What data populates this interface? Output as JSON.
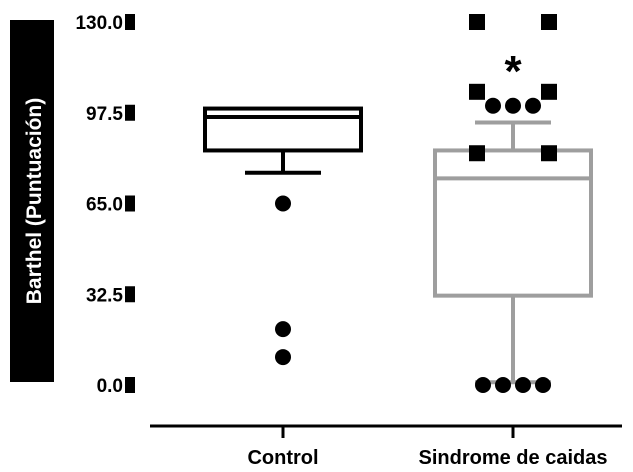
{
  "chart_data": {
    "type": "box",
    "ylabel": "Barthel (Puntuación)",
    "xlabel": "",
    "ylim": [
      0,
      130
    ],
    "yticks": [
      0.0,
      32.5,
      65.0,
      97.5,
      130.0
    ],
    "ytick_labels": [
      "0.0",
      "32.5",
      "65.0",
      "97.5",
      "130.0"
    ],
    "categories": [
      "Control",
      "Sindrome de caidas"
    ],
    "series": [
      {
        "category": "Control",
        "color": "#000000",
        "whisker_low": 76,
        "q1": 84,
        "median": 96,
        "q3": 99,
        "whisker_high": 99,
        "outliers": [
          65,
          20,
          10
        ]
      },
      {
        "category": "Sindrome de caidas",
        "color": "#9e9e9e",
        "whisker_low": 1,
        "q1": 32,
        "median": 74,
        "q3": 84,
        "whisker_high": 94,
        "outliers": [
          100,
          100,
          100,
          0,
          0,
          0,
          0
        ]
      }
    ],
    "annotations": [
      {
        "text": "*",
        "category": "Sindrome de caidas",
        "y": 115
      }
    ],
    "square_markers": [
      {
        "category": "Sindrome de caidas",
        "offset": -1,
        "y": 130
      },
      {
        "category": "Sindrome de caidas",
        "offset": 1,
        "y": 130
      },
      {
        "category": "Sindrome de caidas",
        "offset": -1,
        "y": 105
      },
      {
        "category": "Sindrome de caidas",
        "offset": 1,
        "y": 105
      },
      {
        "category": "Sindrome de caidas",
        "offset": -1,
        "y": 83
      },
      {
        "category": "Sindrome de caidas",
        "offset": 1,
        "y": 83
      }
    ]
  }
}
